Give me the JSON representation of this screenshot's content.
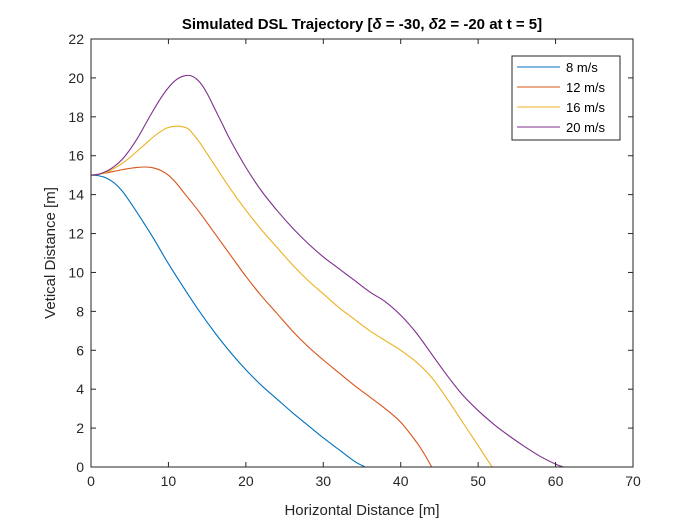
{
  "chart_data": {
    "type": "line",
    "title": "Simulated DSL Trajectory [δ = -30, δ2 = -20 at t = 5]",
    "xlabel": "Horizontal Distance [m]",
    "ylabel": "Vetical Distance [m]",
    "xlim": [
      0,
      70
    ],
    "ylim": [
      0,
      22
    ],
    "xticks": [
      0,
      10,
      20,
      30,
      40,
      50,
      60,
      70
    ],
    "yticks": [
      0,
      2,
      4,
      6,
      8,
      10,
      12,
      14,
      16,
      18,
      20,
      22
    ],
    "grid": false,
    "legend_position": "top-right",
    "series": [
      {
        "name": "8 m/s",
        "color": "#0072BD",
        "x": [
          0,
          1,
          2,
          3,
          4,
          5,
          6,
          8,
          10,
          12,
          14,
          16,
          18,
          20,
          22,
          24,
          26,
          28,
          30,
          32,
          34,
          35.4
        ],
        "y": [
          15,
          14.97,
          14.85,
          14.6,
          14.2,
          13.65,
          13.05,
          11.8,
          10.45,
          9.2,
          8.0,
          6.9,
          5.9,
          5.0,
          4.2,
          3.5,
          2.8,
          2.15,
          1.5,
          0.9,
          0.3,
          0
        ]
      },
      {
        "name": "12 m/s",
        "color": "#D95319",
        "x": [
          0,
          1,
          2,
          3,
          4,
          5,
          6,
          7,
          8,
          9,
          10,
          11,
          12,
          14,
          16,
          18,
          20,
          22,
          24,
          26,
          28,
          30,
          32,
          34,
          36,
          38,
          40,
          42,
          43,
          44
        ],
        "y": [
          15,
          15.05,
          15.12,
          15.2,
          15.28,
          15.35,
          15.4,
          15.42,
          15.38,
          15.25,
          15.0,
          14.6,
          14.1,
          13.1,
          12.0,
          10.9,
          9.8,
          8.8,
          7.9,
          7.0,
          6.2,
          5.5,
          4.85,
          4.2,
          3.6,
          3.0,
          2.3,
          1.3,
          0.7,
          0
        ]
      },
      {
        "name": "16 m/s",
        "color": "#EDB120",
        "x": [
          0,
          1,
          2,
          3,
          4,
          5,
          6,
          7,
          8,
          9,
          10,
          11,
          11.7,
          12.5,
          13,
          14,
          15,
          16,
          18,
          20,
          22,
          24,
          26,
          28,
          30,
          32,
          34,
          36,
          38,
          40,
          42,
          44,
          46,
          48,
          50,
          51.8
        ],
        "y": [
          15,
          15.05,
          15.15,
          15.35,
          15.6,
          15.9,
          16.25,
          16.6,
          16.95,
          17.25,
          17.45,
          17.52,
          17.5,
          17.4,
          17.2,
          16.7,
          16.1,
          15.5,
          14.3,
          13.2,
          12.2,
          11.3,
          10.4,
          9.6,
          8.9,
          8.2,
          7.6,
          7.0,
          6.5,
          6.0,
          5.4,
          4.6,
          3.5,
          2.3,
          1.1,
          0
        ]
      },
      {
        "name": "20 m/s",
        "color": "#7E2F8E",
        "x": [
          0,
          1,
          2,
          3,
          4,
          5,
          6,
          7,
          8,
          9,
          10,
          11,
          12,
          13,
          14,
          15,
          16,
          17,
          18,
          20,
          22,
          24,
          26,
          28,
          30,
          32,
          34,
          36,
          38,
          40,
          42,
          44,
          46,
          48,
          50,
          52,
          54,
          56,
          58,
          60,
          61
        ],
        "y": [
          15,
          15.05,
          15.2,
          15.45,
          15.8,
          16.3,
          16.9,
          17.6,
          18.3,
          18.95,
          19.5,
          19.9,
          20.1,
          20.1,
          19.8,
          19.2,
          18.4,
          17.6,
          16.8,
          15.4,
          14.2,
          13.2,
          12.3,
          11.5,
          10.8,
          10.2,
          9.6,
          9.0,
          8.5,
          7.8,
          6.9,
          5.8,
          4.7,
          3.7,
          2.9,
          2.2,
          1.6,
          1.05,
          0.55,
          0.15,
          0
        ]
      }
    ]
  }
}
